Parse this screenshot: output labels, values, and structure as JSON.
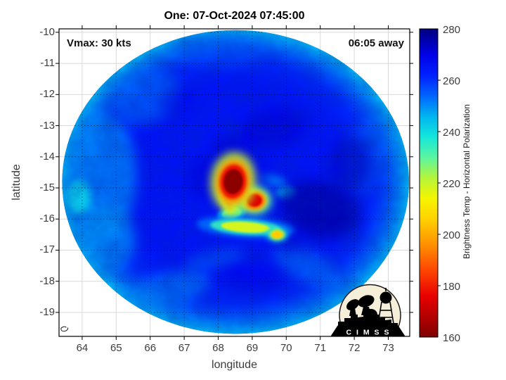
{
  "figure": {
    "title": "One: 07-Oct-2024 07:45:00",
    "annotation_left": "Vmax: 30 kts",
    "annotation_right": "06:05 away"
  },
  "axes": {
    "xlabel": "longitude",
    "ylabel": "latitude",
    "xticks": [
      64,
      65,
      66,
      67,
      68,
      69,
      70,
      71,
      72,
      73
    ],
    "yticks": [
      -10,
      -11,
      -12,
      -13,
      -14,
      -15,
      -16,
      -17,
      -18,
      -19
    ]
  },
  "colorbar": {
    "label": "Brightness Temp - Horizontal Polarization",
    "ticks": [
      280,
      260,
      240,
      220,
      200,
      180,
      160
    ],
    "min": 160,
    "max": 280
  },
  "logo": {
    "letters": "C I M S S"
  },
  "chart_data": {
    "type": "heatmap",
    "title": "One: 07-Oct-2024 07:45:00",
    "subtitle_left": "Vmax: 30 kts",
    "subtitle_right": "06:05 away",
    "xlabel": "longitude",
    "ylabel": "latitude",
    "xlim": [
      63.32,
      73.63
    ],
    "ylim": [
      -19.77,
      -9.89
    ],
    "xticks": [
      64,
      65,
      66,
      67,
      68,
      69,
      70,
      71,
      72,
      73
    ],
    "yticks": [
      -10,
      -11,
      -12,
      -13,
      -14,
      -15,
      -16,
      -17,
      -18,
      -19
    ],
    "grid": true,
    "colorbar_label": "Brightness Temp - Horizontal Polarization",
    "colorbar_range": [
      160,
      280
    ],
    "colorbar_ticks": [
      280,
      260,
      240,
      220,
      200,
      180,
      160
    ],
    "colormap": "jet-reversed",
    "colormap_stops": [
      {
        "t": 160,
        "c": "#7f0000"
      },
      {
        "t": 168,
        "c": "#b40000"
      },
      {
        "t": 176,
        "c": "#e80000"
      },
      {
        "t": 186,
        "c": "#ff4600"
      },
      {
        "t": 196,
        "c": "#ff9100"
      },
      {
        "t": 206,
        "c": "#ffd200"
      },
      {
        "t": 214,
        "c": "#f5f500"
      },
      {
        "t": 222,
        "c": "#b4f53c"
      },
      {
        "t": 230,
        "c": "#5af5a0"
      },
      {
        "t": 238,
        "c": "#14e6dc"
      },
      {
        "t": 246,
        "c": "#00b4f0"
      },
      {
        "t": 254,
        "c": "#0064ff"
      },
      {
        "t": 262,
        "c": "#0020ff"
      },
      {
        "t": 270,
        "c": "#0000e6"
      },
      {
        "t": 280,
        "c": "#00007f"
      }
    ],
    "swath": {
      "center_lon": 68.51,
      "center_lat": -14.81,
      "radius_lon_deg": 5.1,
      "radius_lat_deg": 4.88,
      "background_temp_K": 265,
      "rim_temp_K": 245
    },
    "cold_features": [
      {
        "name": "eyewall-cold-core",
        "lon": 68.44,
        "lat": -14.8,
        "rx_deg": 0.28,
        "ry_deg": 0.4,
        "rot_deg": 6,
        "temp_K": 162,
        "halo": "full"
      },
      {
        "name": "cold-core-southwest-tail",
        "lon": 68.3,
        "lat": -15.3,
        "rx_deg": 0.13,
        "ry_deg": 0.28,
        "rot_deg": -12,
        "temp_K": 178,
        "halo": "mild"
      },
      {
        "name": "secondary-cold-cell",
        "lon": 69.06,
        "lat": -15.4,
        "rx_deg": 0.22,
        "ry_deg": 0.2,
        "rot_deg": 0,
        "temp_K": 174,
        "halo": "full"
      },
      {
        "name": "southern-convective-band",
        "lon": 68.8,
        "lat": -16.26,
        "rx_deg": 0.72,
        "ry_deg": 0.17,
        "rot_deg": 4,
        "temp_K": 218,
        "halo": "mild"
      },
      {
        "name": "small-convective-cell",
        "lon": 69.73,
        "lat": -16.5,
        "rx_deg": 0.16,
        "ry_deg": 0.12,
        "rot_deg": 0,
        "temp_K": 205,
        "halo": "mild"
      },
      {
        "name": "band-teal-patch",
        "lon": 68.4,
        "lat": -15.82,
        "rx_deg": 0.3,
        "ry_deg": 0.18,
        "rot_deg": -15,
        "temp_K": 231,
        "halo": "mild"
      }
    ],
    "dark_patches": [
      {
        "lon": 71.0,
        "lat": -15.7,
        "rx_deg": 1.2,
        "ry_deg": 0.9,
        "rot_deg": 15,
        "temp_K": 276,
        "blur": 10,
        "opacity": 0.8
      },
      {
        "lon": 69.6,
        "lat": -13.1,
        "rx_deg": 1.0,
        "ry_deg": 0.65,
        "rot_deg": -10,
        "temp_K": 272,
        "blur": 9,
        "opacity": 0.6
      },
      {
        "lon": 68.35,
        "lat": -13.75,
        "rx_deg": 0.55,
        "ry_deg": 0.45,
        "rot_deg": 0,
        "temp_K": 272,
        "blur": 8,
        "opacity": 0.55
      },
      {
        "lon": 67.55,
        "lat": -14.7,
        "rx_deg": 0.5,
        "ry_deg": 0.7,
        "rot_deg": 0,
        "temp_K": 271,
        "blur": 8,
        "opacity": 0.5
      },
      {
        "lon": 71.9,
        "lat": -14.2,
        "rx_deg": 0.6,
        "ry_deg": 0.9,
        "rot_deg": 0,
        "temp_K": 274,
        "blur": 9,
        "opacity": 0.6
      },
      {
        "lon": 69.0,
        "lat": -17.9,
        "rx_deg": 0.9,
        "ry_deg": 0.45,
        "rot_deg": 10,
        "temp_K": 270,
        "blur": 9,
        "opacity": 0.45
      },
      {
        "lon": 66.8,
        "lat": -12.2,
        "rx_deg": 0.55,
        "ry_deg": 0.4,
        "rot_deg": -20,
        "temp_K": 270,
        "blur": 8,
        "opacity": 0.4
      },
      {
        "lon": 68.55,
        "lat": -14.55,
        "rx_deg": 0.95,
        "ry_deg": 0.8,
        "rot_deg": 0,
        "temp_K": 270,
        "blur": 8,
        "opacity": 0.5
      },
      {
        "lon": 70.0,
        "lat": -16.7,
        "rx_deg": 0.55,
        "ry_deg": 0.35,
        "rot_deg": 20,
        "temp_K": 272,
        "blur": 8,
        "opacity": 0.5
      }
    ],
    "light_patches": [
      {
        "lon": 64.6,
        "lat": -14.6,
        "rx_deg": 1.0,
        "ry_deg": 2.0,
        "rot_deg": 0,
        "temp_K": 250,
        "blur": 9,
        "opacity": 0.75
      },
      {
        "lon": 64.7,
        "lat": -16.6,
        "rx_deg": 0.85,
        "ry_deg": 1.05,
        "rot_deg": -20,
        "temp_K": 249,
        "blur": 9,
        "opacity": 0.7
      },
      {
        "lon": 65.9,
        "lat": -12.1,
        "rx_deg": 1.0,
        "ry_deg": 0.8,
        "rot_deg": -25,
        "temp_K": 252,
        "blur": 9,
        "opacity": 0.55
      },
      {
        "lon": 66.5,
        "lat": -18.3,
        "rx_deg": 1.3,
        "ry_deg": 0.55,
        "rot_deg": -15,
        "temp_K": 250,
        "blur": 9,
        "opacity": 0.6
      },
      {
        "lon": 70.6,
        "lat": -17.5,
        "rx_deg": 1.1,
        "ry_deg": 0.5,
        "rot_deg": 28,
        "temp_K": 250,
        "blur": 9,
        "opacity": 0.5
      },
      {
        "lon": 72.3,
        "lat": -14.0,
        "rx_deg": 0.6,
        "ry_deg": 1.2,
        "rot_deg": 10,
        "temp_K": 253,
        "blur": 9,
        "opacity": 0.45
      },
      {
        "lon": 68.0,
        "lat": -10.6,
        "rx_deg": 1.4,
        "ry_deg": 0.5,
        "rot_deg": 3,
        "temp_K": 255,
        "blur": 9,
        "opacity": 0.45
      },
      {
        "lon": 63.9,
        "lat": -15.3,
        "rx_deg": 0.35,
        "ry_deg": 0.55,
        "rot_deg": 0,
        "temp_K": 242,
        "blur": 5,
        "opacity": 0.9
      },
      {
        "lon": 70.0,
        "lat": -15.15,
        "rx_deg": 0.3,
        "ry_deg": 0.2,
        "rot_deg": 0,
        "temp_K": 243,
        "blur": 4,
        "opacity": 0.8
      },
      {
        "lon": 69.6,
        "lat": -14.75,
        "rx_deg": 0.45,
        "ry_deg": 0.18,
        "rot_deg": 15,
        "temp_K": 249,
        "blur": 5,
        "opacity": 0.7
      },
      {
        "lon": 67.9,
        "lat": -17.3,
        "rx_deg": 0.9,
        "ry_deg": 0.3,
        "rot_deg": -12,
        "temp_K": 252,
        "blur": 8,
        "opacity": 0.45
      }
    ]
  }
}
